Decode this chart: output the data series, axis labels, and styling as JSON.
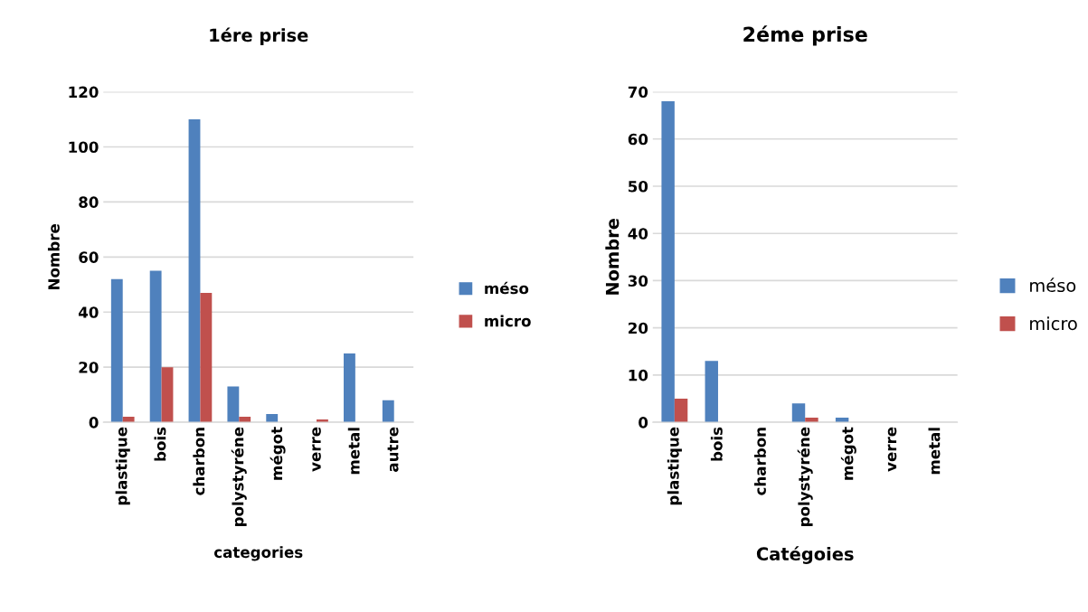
{
  "chart_data": [
    {
      "type": "bar",
      "title": "1ére prise",
      "xlabel": "categories",
      "ylabel": "Nombre",
      "categories": [
        "plastique",
        "bois",
        "charbon",
        "polystyréne",
        "mégot",
        "verre",
        "metal",
        "autre"
      ],
      "series": [
        {
          "name": "méso",
          "color": "#4f81bd",
          "values": [
            52,
            55,
            110,
            13,
            3,
            0,
            25,
            8
          ]
        },
        {
          "name": "micro",
          "color": "#c0504d",
          "values": [
            2,
            20,
            47,
            2,
            0,
            1,
            0,
            0
          ]
        }
      ],
      "ylim": [
        0,
        120
      ],
      "yticks": [
        0,
        20,
        40,
        60,
        80,
        100,
        120
      ],
      "grid": "y",
      "legend": "right"
    },
    {
      "type": "bar",
      "title": "2éme prise",
      "xlabel": "Catégoies",
      "ylabel": "Nombre",
      "categories": [
        "plastique",
        "bois",
        "charbon",
        "polystyréne",
        "mégot",
        "verre",
        "metal"
      ],
      "series": [
        {
          "name": "méso",
          "color": "#4f81bd",
          "values": [
            68,
            13,
            0,
            4,
            1,
            0,
            0
          ]
        },
        {
          "name": "micro",
          "color": "#c0504d",
          "values": [
            5,
            0,
            0,
            1,
            0,
            0,
            0
          ]
        }
      ],
      "ylim": [
        0,
        70
      ],
      "yticks": [
        0,
        10,
        20,
        30,
        40,
        50,
        60,
        70
      ],
      "grid": "y",
      "legend": "right"
    }
  ]
}
